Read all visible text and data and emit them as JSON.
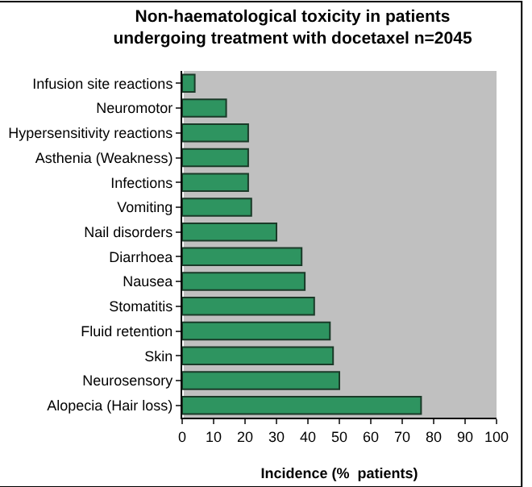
{
  "chart_data": {
    "type": "bar",
    "orientation": "horizontal",
    "title": "Non-haematological toxicity in patients undergoing treatment with docetaxel n=2045",
    "xlabel": "Incidence (%  patients)",
    "categories": [
      "Infusion site reactions",
      "Neuromotor",
      "Hypersensitivity reactions",
      "Asthenia (Weakness)",
      "Infections",
      "Vomiting",
      "Nail disorders",
      "Diarrhoea",
      "Nausea",
      "Stomatitis",
      "Fluid retention",
      "Skin",
      "Neurosensory",
      "Alopecia (Hair loss)"
    ],
    "values": [
      4,
      14,
      21,
      21,
      21,
      22,
      30,
      38,
      39,
      42,
      47,
      48,
      50,
      76
    ],
    "color": "#2e9460",
    "xlim": [
      0,
      100
    ],
    "xticks": [
      0,
      10,
      20,
      30,
      40,
      50,
      60,
      70,
      80,
      90,
      100
    ],
    "grid": false,
    "legend": false
  }
}
